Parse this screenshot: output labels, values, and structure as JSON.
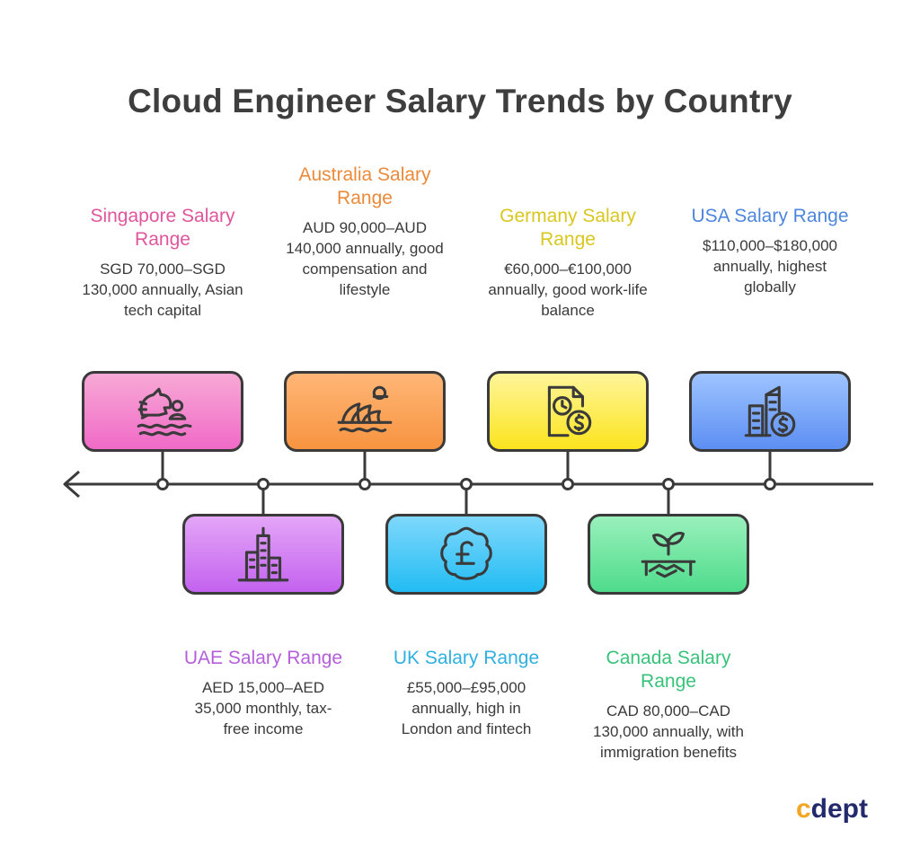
{
  "title": "Cloud Engineer Salary Trends by Country",
  "brand": {
    "accent_letter": "c",
    "rest": "dept"
  },
  "countries": [
    {
      "id": "singapore",
      "position": "top",
      "heading": "Singapore Salary Range",
      "desc": "SGD 70,000–SGD 130,000 annually, Asian tech capital",
      "color": "#e0559b",
      "card_from": "#f7a9d6",
      "card_to": "#f06ac7",
      "icon": "merlion-icon"
    },
    {
      "id": "uae",
      "position": "bottom",
      "heading": "UAE Salary Range",
      "desc": "AED 15,000–AED 35,000 monthly, tax-free income",
      "color": "#b45fd9",
      "card_from": "#e3a6f7",
      "card_to": "#c462ef",
      "icon": "skyscraper-icon"
    },
    {
      "id": "australia",
      "position": "top",
      "heading": "Australia Salary Range",
      "desc": "AUD 90,000–AUD 140,000 annually, good compensation and lifestyle",
      "color": "#ea8a3a",
      "card_from": "#ffb677",
      "card_to": "#f79440",
      "icon": "opera-house-icon"
    },
    {
      "id": "uk",
      "position": "bottom",
      "heading": "UK Salary Range",
      "desc": "£55,000–£95,000 annually, high in London and fintech",
      "color": "#2fb0e0",
      "card_from": "#7fd8fb",
      "card_to": "#22bcf3",
      "icon": "pound-icon"
    },
    {
      "id": "germany",
      "position": "top",
      "heading": "Germany Salary Range",
      "desc": "€60,000–€100,000 annually, good work-life balance",
      "color": "#d9c71f",
      "card_from": "#fff59a",
      "card_to": "#fbe41e",
      "icon": "time-money-document-icon"
    },
    {
      "id": "canada",
      "position": "bottom",
      "heading": "Canada Salary Range",
      "desc": "CAD 80,000–CAD 130,000 annually, with immigration benefits",
      "color": "#38c27a",
      "card_from": "#99f0bb",
      "card_to": "#4fdc8c",
      "icon": "plant-handshake-icon"
    },
    {
      "id": "usa",
      "position": "top",
      "heading": "USA Salary Range",
      "desc": "$110,000–$180,000 annually, highest globally",
      "color": "#4d86dc",
      "card_from": "#9ec3ff",
      "card_to": "#5c8ff2",
      "icon": "building-dollar-icon"
    }
  ]
}
